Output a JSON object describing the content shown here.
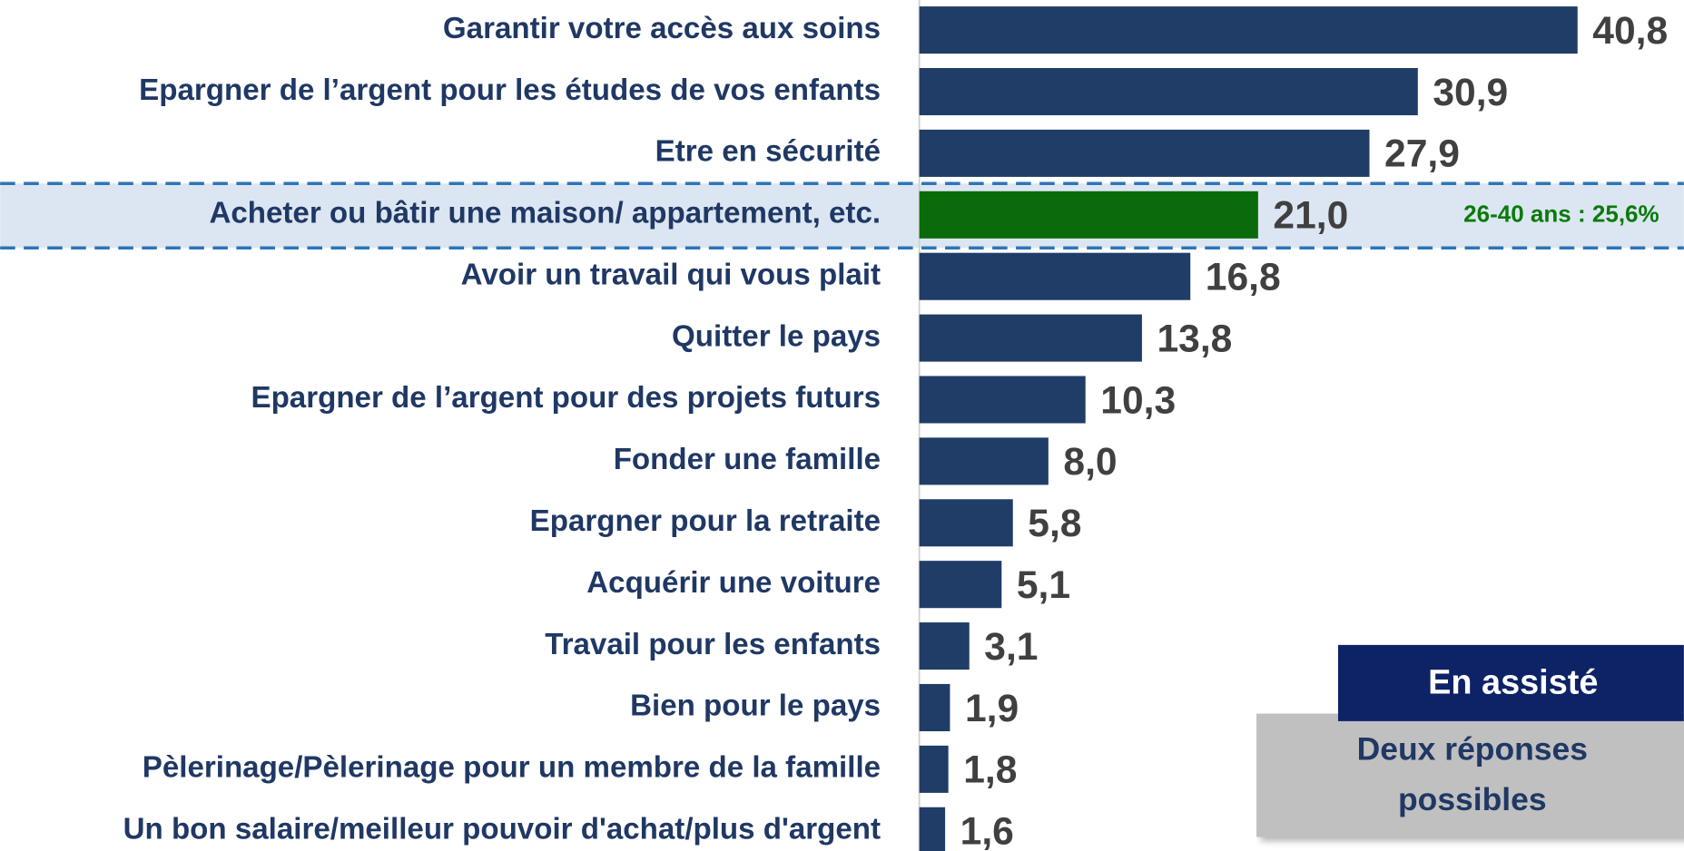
{
  "chart_data": {
    "type": "hbar",
    "categories": [
      "Garantir votre accès aux soins",
      "Epargner de l’argent pour les études de vos enfants",
      "Etre en sécurité",
      "Acheter ou bâtir  une maison/ appartement, etc.",
      "Avoir un travail qui vous plait",
      "Quitter le pays",
      "Epargner de l’argent pour des projets futurs",
      "Fonder une famille",
      "Epargner pour la retraite",
      "Acquérir une voiture",
      "Travail pour les enfants",
      "Bien pour le pays",
      "Pèlerinage/Pèlerinage pour un membre de la famille",
      "Un bon salaire/meilleur pouvoir d'achat/plus d'argent"
    ],
    "values": [
      40.8,
      30.9,
      27.9,
      21.0,
      16.8,
      13.8,
      10.3,
      8.0,
      5.8,
      5.1,
      3.1,
      1.9,
      1.8,
      1.6
    ],
    "value_labels": [
      "40,8",
      "30,9",
      "27,9",
      "21,0",
      "16,8",
      "13,8",
      "10,3",
      "8,0",
      "5,8",
      "5,1",
      "3,1",
      "1,9",
      "1,8",
      "1,6"
    ],
    "colors": [
      "#1f3d66",
      "#1f3d66",
      "#1f3d66",
      "#0a6b0a",
      "#1f3d66",
      "#1f3d66",
      "#1f3d66",
      "#1f3d66",
      "#1f3d66",
      "#1f3d66",
      "#1f3d66",
      "#1f3d66",
      "#1f3d66",
      "#1f3d66"
    ],
    "annotation": "26-40 ans : 25,6%",
    "badge": "En assisté",
    "note": [
      "Deux réponses",
      "possibles"
    ]
  }
}
